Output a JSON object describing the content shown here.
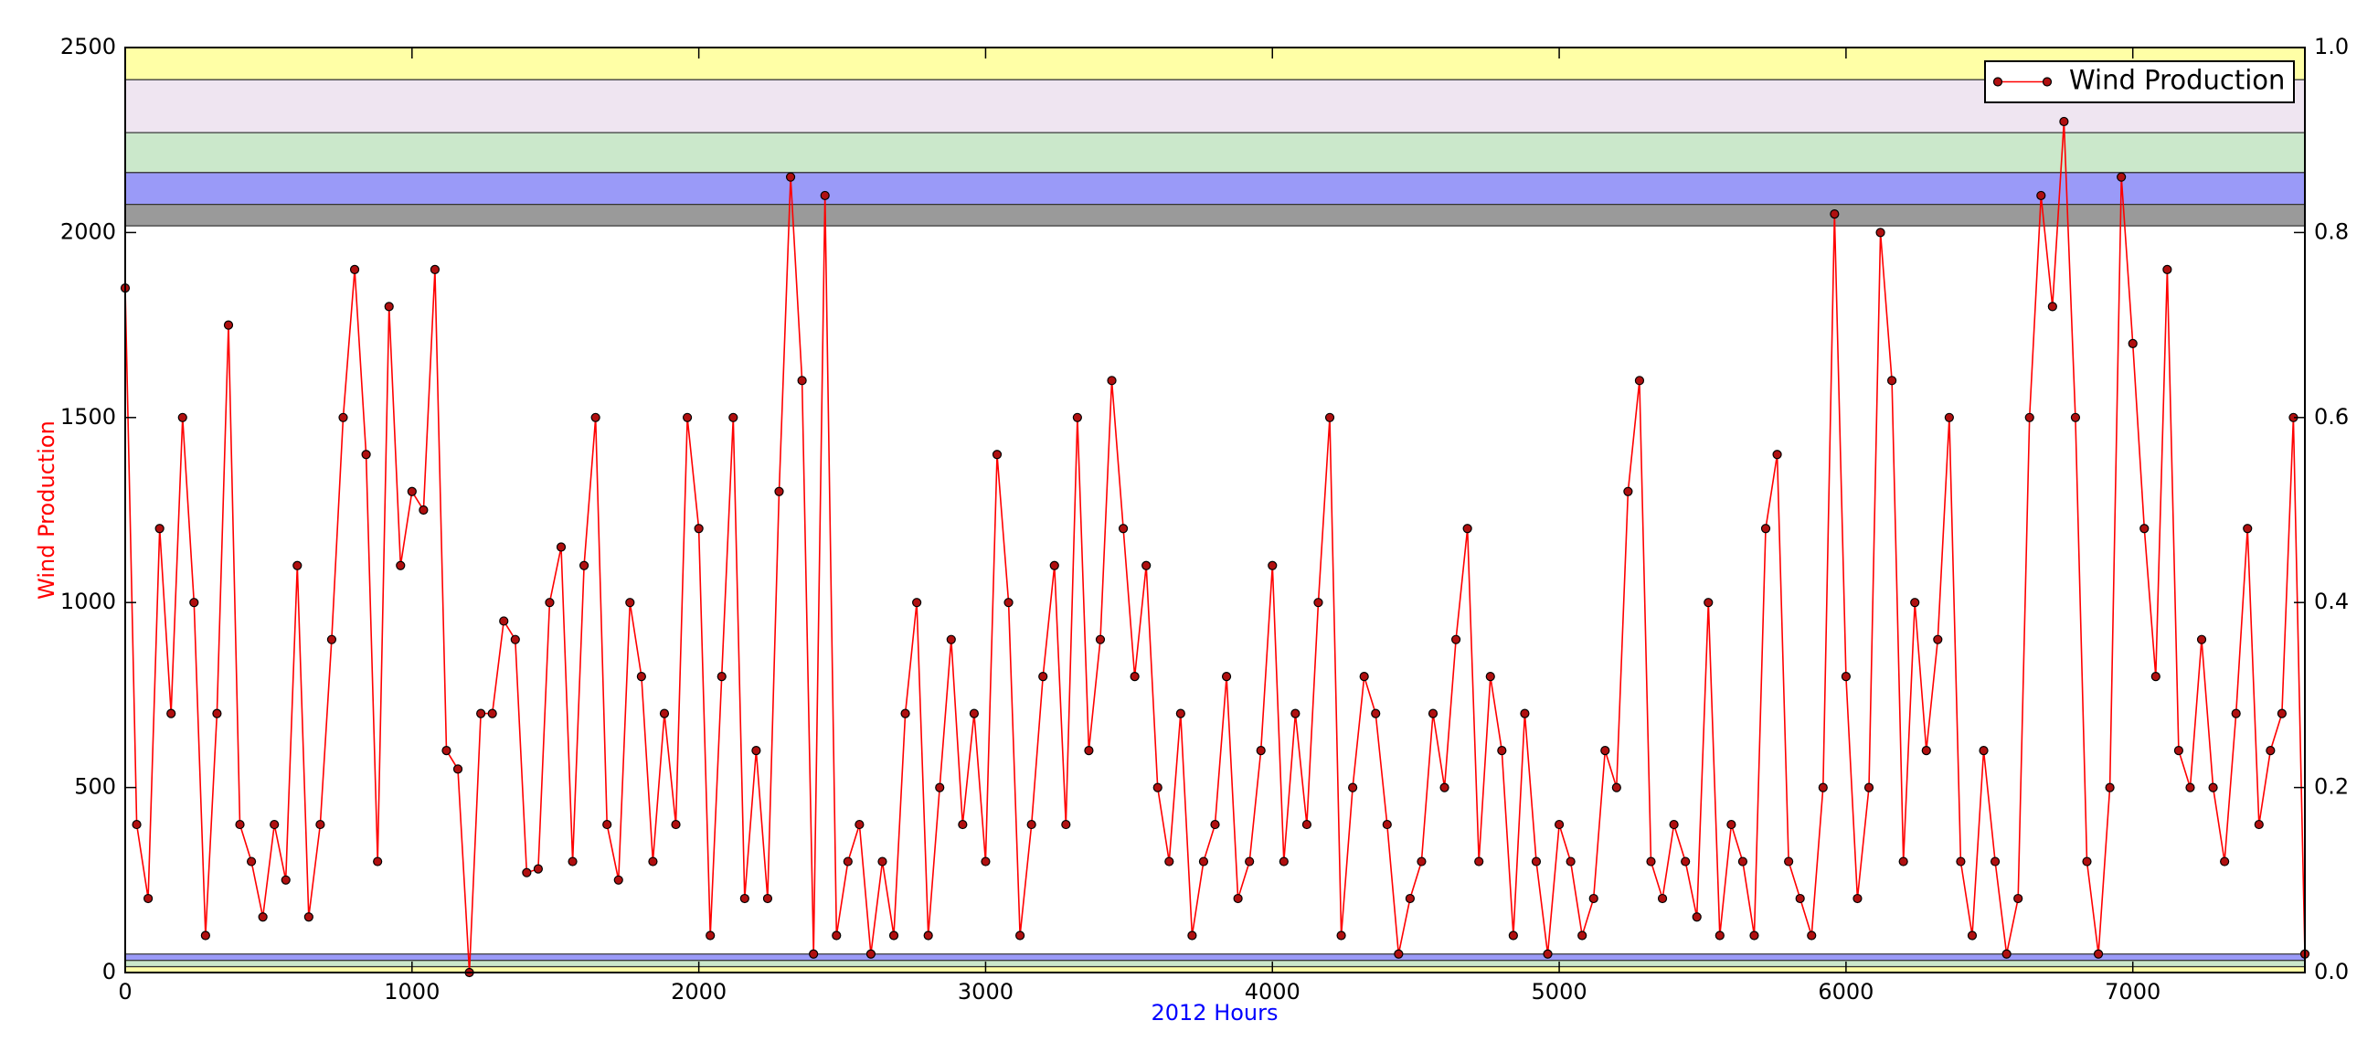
{
  "chart_data": {
    "type": "line",
    "xlabel": "2012 Hours",
    "ylabel": "Wind Production",
    "xlim": [
      0,
      7600
    ],
    "xticks": [
      0,
      1000,
      2000,
      3000,
      4000,
      5000,
      6000,
      7000
    ],
    "ylim": [
      0,
      2500
    ],
    "yticks": [
      0,
      500,
      1000,
      1500,
      2000,
      2500
    ],
    "y2lim": [
      0,
      1
    ],
    "y2ticks": [
      {
        "value": 0,
        "label": "0.0"
      },
      0.2,
      0.4,
      0.6,
      0.8,
      {
        "value": 1,
        "label": "1.0"
      }
    ],
    "legend": "upper right",
    "bands": [
      {
        "range": [
          2413,
          2500
        ],
        "color": "#ffffa6"
      },
      {
        "range": [
          2270,
          2413
        ],
        "color": "#efe5f1"
      },
      {
        "range": [
          2162,
          2270
        ],
        "color": "#cbe8cb"
      },
      {
        "range": [
          2076,
          2162
        ],
        "color": "#9a9af8"
      },
      {
        "range": [
          2018,
          2076
        ],
        "color": "#9a9a9a"
      },
      {
        "range": [
          0,
          16
        ],
        "color": "#ffffa6"
      },
      {
        "range": [
          16,
          33
        ],
        "color": "#cbe8cb"
      },
      {
        "range": [
          33,
          50
        ],
        "color": "#9a9af8"
      }
    ],
    "x": [
      0,
      40,
      80,
      120,
      160,
      200,
      240,
      280,
      320,
      360,
      400,
      440,
      480,
      520,
      560,
      600,
      640,
      680,
      720,
      760,
      800,
      840,
      880,
      920,
      960,
      1000,
      1040,
      1080,
      1120,
      1160,
      1200,
      1240,
      1280,
      1320,
      1360,
      1400,
      1440,
      1480,
      1520,
      1560,
      1600,
      1640,
      1680,
      1720,
      1760,
      1800,
      1840,
      1880,
      1920,
      1960,
      2000,
      2040,
      2080,
      2120,
      2160,
      2200,
      2240,
      2280,
      2320,
      2360,
      2400,
      2440,
      2480,
      2520,
      2560,
      2600,
      2640,
      2680,
      2720,
      2760,
      2800,
      2840,
      2880,
      2920,
      2960,
      3000,
      3040,
      3080,
      3120,
      3160,
      3200,
      3240,
      3280,
      3320,
      3360,
      3400,
      3440,
      3480,
      3520,
      3560,
      3600,
      3640,
      3680,
      3720,
      3760,
      3800,
      3840,
      3880,
      3920,
      3960,
      4000,
      4040,
      4080,
      4120,
      4160,
      4200,
      4240,
      4280,
      4320,
      4360,
      4400,
      4440,
      4480,
      4520,
      4560,
      4600,
      4640,
      4680,
      4720,
      4760,
      4800,
      4840,
      4880,
      4920,
      4960,
      5000,
      5040,
      5080,
      5120,
      5160,
      5200,
      5240,
      5280,
      5320,
      5360,
      5400,
      5440,
      5480,
      5520,
      5560,
      5600,
      5640,
      5680,
      5720,
      5760,
      5800,
      5840,
      5880,
      5920,
      5960,
      6000,
      6040,
      6080,
      6120,
      6160,
      6200,
      6240,
      6280,
      6320,
      6360,
      6400,
      6440,
      6480,
      6520,
      6560,
      6600,
      6640,
      6680,
      6720,
      6760,
      6800,
      6840,
      6880,
      6920,
      6960,
      7000,
      7040,
      7080,
      7120,
      7160,
      7200,
      7240,
      7280,
      7320,
      7360,
      7400,
      7440,
      7480,
      7520,
      7560,
      7600
    ],
    "series": [
      {
        "name": "Wind Production",
        "color": "#ff0000",
        "marker_color": "#b01010",
        "values": [
          1850,
          400,
          200,
          1200,
          700,
          1500,
          1000,
          100,
          700,
          1750,
          400,
          300,
          150,
          400,
          250,
          1100,
          150,
          400,
          900,
          1500,
          1900,
          1400,
          300,
          1800,
          1100,
          1300,
          1250,
          1900,
          600,
          550,
          0,
          700,
          700,
          950,
          900,
          270,
          280,
          1000,
          1150,
          300,
          1100,
          1500,
          400,
          250,
          1000,
          800,
          300,
          700,
          400,
          1500,
          1200,
          100,
          800,
          1500,
          200,
          600,
          200,
          1300,
          2150,
          1600,
          50,
          2100,
          100,
          300,
          400,
          50,
          300,
          100,
          700,
          1000,
          100,
          500,
          900,
          400,
          700,
          300,
          1400,
          1000,
          100,
          400,
          800,
          1100,
          400,
          1500,
          600,
          900,
          1600,
          1200,
          800,
          1100,
          500,
          300,
          700,
          100,
          300,
          400,
          800,
          200,
          300,
          600,
          1100,
          300,
          700,
          400,
          1000,
          1500,
          100,
          500,
          800,
          700,
          400,
          50,
          200,
          300,
          700,
          500,
          900,
          1200,
          300,
          800,
          600,
          100,
          700,
          300,
          50,
          400,
          300,
          100,
          200,
          600,
          500,
          1300,
          1600,
          300,
          200,
          400,
          300,
          150,
          1000,
          100,
          400,
          300,
          100,
          1200,
          1400,
          300,
          200,
          100,
          500,
          2050,
          800,
          200,
          500,
          2000,
          1600,
          300,
          1000,
          600,
          900,
          1500,
          300,
          100,
          600,
          300,
          50,
          200,
          1500,
          2100,
          1800,
          2300,
          1500,
          300,
          50,
          500,
          2150,
          1700,
          1200,
          800,
          1900,
          600,
          500,
          900,
          500,
          300,
          700,
          1200,
          400,
          600,
          700,
          1500,
          50
        ]
      }
    ]
  }
}
